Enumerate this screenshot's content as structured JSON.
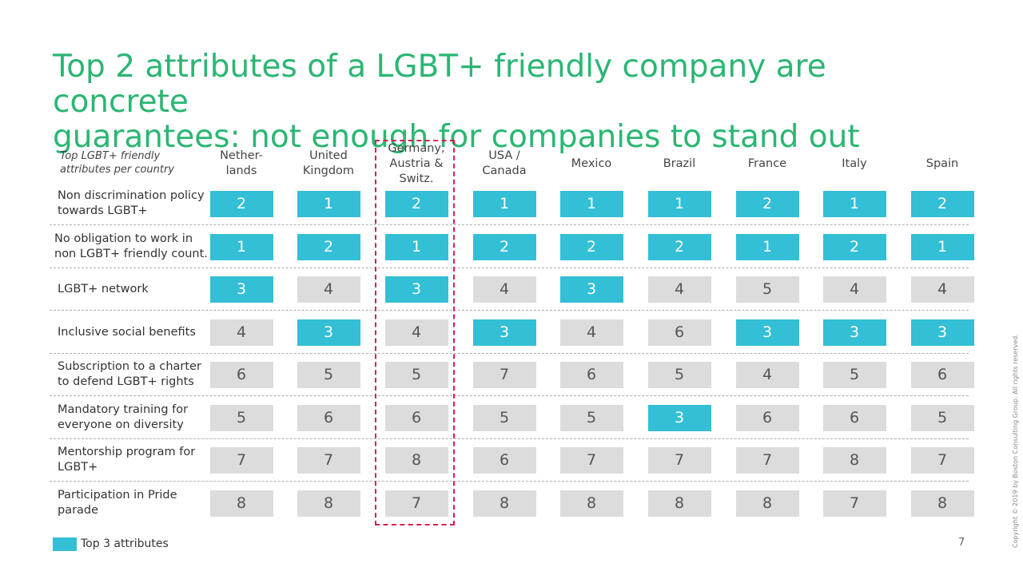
{
  "title": {
    "line1": "Top 2 attributes of a LGBT+ friendly company are concrete",
    "line2": "guarantees: not enough for companies to stand out"
  },
  "colors": {
    "title": "#2bb673",
    "top3": "#33bfd6",
    "other": "#dcdcdc",
    "highlight_border": "#d6204e"
  },
  "chart_data": {
    "type": "table",
    "corner_header": "Top LGBT+ friendly attributes per country",
    "columns": [
      "Nether-lands",
      "United Kingdom",
      "Germany, Austria & Switz.",
      "USA / Canada",
      "Mexico",
      "Brazil",
      "France",
      "Italy",
      "Spain"
    ],
    "column_lines": [
      [
        "Nether-",
        "lands"
      ],
      [
        "United",
        "Kingdom"
      ],
      [
        "Germany,",
        "Austria &",
        "Switz."
      ],
      [
        "USA /",
        "Canada"
      ],
      [
        "Mexico"
      ],
      [
        "Brazil"
      ],
      [
        "France"
      ],
      [
        "Italy"
      ],
      [
        "Spain"
      ]
    ],
    "highlighted_column": "Germany, Austria & Switz.",
    "rows": [
      {
        "label": "Non discrimination policy towards LGBT+",
        "values": [
          2,
          1,
          2,
          1,
          1,
          1,
          2,
          1,
          2
        ],
        "top3": [
          true,
          true,
          true,
          true,
          true,
          true,
          true,
          true,
          true
        ]
      },
      {
        "label": "No obligation to work in non LGBT+ friendly count.",
        "values": [
          1,
          2,
          1,
          2,
          2,
          2,
          1,
          2,
          1
        ],
        "top3": [
          true,
          true,
          true,
          true,
          true,
          true,
          true,
          true,
          true
        ]
      },
      {
        "label": "LGBT+ network",
        "values": [
          3,
          4,
          3,
          4,
          3,
          4,
          5,
          4,
          4
        ],
        "top3": [
          true,
          false,
          true,
          false,
          true,
          false,
          false,
          false,
          false
        ]
      },
      {
        "label": "Inclusive social benefits",
        "values": [
          4,
          3,
          4,
          3,
          4,
          6,
          3,
          3,
          3
        ],
        "top3": [
          false,
          true,
          false,
          true,
          false,
          false,
          true,
          true,
          true
        ]
      },
      {
        "label": "Subscription to a charter to defend LGBT+ rights",
        "values": [
          6,
          5,
          5,
          7,
          6,
          5,
          4,
          5,
          6
        ],
        "top3": [
          false,
          false,
          false,
          false,
          false,
          false,
          false,
          false,
          false
        ]
      },
      {
        "label": "Mandatory training for everyone on diversity",
        "values": [
          5,
          6,
          6,
          5,
          5,
          3,
          6,
          6,
          5
        ],
        "top3": [
          false,
          false,
          false,
          false,
          false,
          true,
          false,
          false,
          false
        ]
      },
      {
        "label": "Mentorship program for LGBT+",
        "values": [
          7,
          7,
          8,
          6,
          7,
          7,
          7,
          8,
          7
        ],
        "top3": [
          false,
          false,
          false,
          false,
          false,
          false,
          false,
          false,
          false
        ]
      },
      {
        "label": "Participation in Pride parade",
        "values": [
          8,
          8,
          7,
          8,
          8,
          8,
          8,
          7,
          8
        ],
        "top3": [
          false,
          false,
          false,
          false,
          false,
          false,
          false,
          false,
          false
        ]
      }
    ]
  },
  "legend": {
    "label": "Top 3 attributes"
  },
  "page_number": "7",
  "copyright": "Copyright © 2019 by Boston Consulting Group. All rights reserved."
}
